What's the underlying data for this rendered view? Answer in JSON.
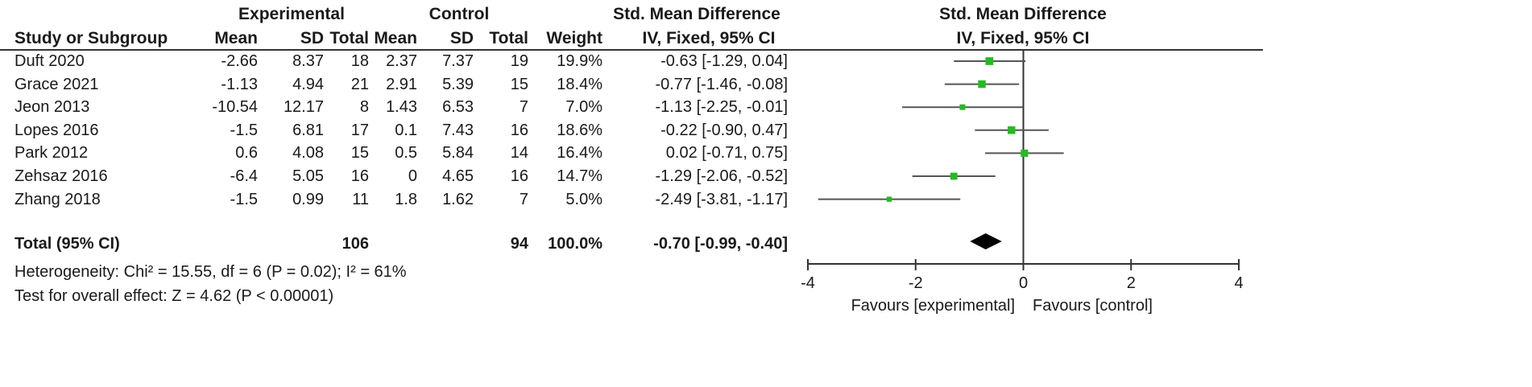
{
  "headers": {
    "experimental": "Experimental",
    "control": "Control",
    "smd_group_left": "Std. Mean Difference",
    "smd_group_right": "Std. Mean Difference",
    "study": "Study or Subgroup",
    "mean_e": "Mean",
    "sd_e": "SD",
    "total_e": "Total",
    "mean_c": "Mean",
    "sd_c": "SD",
    "total_c": "Total",
    "weight": "Weight",
    "ci_left": "IV, Fixed, 95% CI",
    "ci_right": "IV, Fixed, 95% CI"
  },
  "studies": [
    {
      "name": "Duft 2020",
      "mean_e": "-2.66",
      "sd_e": "8.37",
      "total_e": "18",
      "mean_c": "2.37",
      "sd_c": "7.37",
      "total_c": "19",
      "weight": "19.9%",
      "ci": "-0.63 [-1.29, 0.04]"
    },
    {
      "name": "Grace  2021",
      "mean_e": "-1.13",
      "sd_e": "4.94",
      "total_e": "21",
      "mean_c": "2.91",
      "sd_c": "5.39",
      "total_c": "15",
      "weight": "18.4%",
      "ci": "-0.77 [-1.46, -0.08]"
    },
    {
      "name": "Jeon 2013",
      "mean_e": "-10.54",
      "sd_e": "12.17",
      "total_e": "8",
      "mean_c": "1.43",
      "sd_c": "6.53",
      "total_c": "7",
      "weight": "7.0%",
      "ci": "-1.13 [-2.25, -0.01]"
    },
    {
      "name": "Lopes 2016",
      "mean_e": "-1.5",
      "sd_e": "6.81",
      "total_e": "17",
      "mean_c": "0.1",
      "sd_c": "7.43",
      "total_c": "16",
      "weight": "18.6%",
      "ci": "-0.22 [-0.90, 0.47]"
    },
    {
      "name": "Park 2012",
      "mean_e": "0.6",
      "sd_e": "4.08",
      "total_e": "15",
      "mean_c": "0.5",
      "sd_c": "5.84",
      "total_c": "14",
      "weight": "16.4%",
      "ci": "0.02 [-0.71, 0.75]"
    },
    {
      "name": "Zehsaz 2016",
      "mean_e": "-6.4",
      "sd_e": "5.05",
      "total_e": "16",
      "mean_c": "0",
      "sd_c": "4.65",
      "total_c": "16",
      "weight": "14.7%",
      "ci": "-1.29 [-2.06, -0.52]"
    },
    {
      "name": "Zhang 2018",
      "mean_e": "-1.5",
      "sd_e": "0.99",
      "total_e": "11",
      "mean_c": "1.8",
      "sd_c": "1.62",
      "total_c": "7",
      "weight": "5.0%",
      "ci": "-2.49 [-3.81, -1.17]"
    }
  ],
  "total": {
    "label": "Total (95% CI)",
    "total_e": "106",
    "total_c": "94",
    "weight": "100.0%",
    "ci": "-0.70 [-0.99, -0.40]"
  },
  "heterogeneity": "Heterogeneity: Chi² = 15.55, df = 6 (P = 0.02); I² = 61%",
  "overall_effect": "Test for overall effect: Z = 4.62 (P < 0.00001)",
  "favours_left": "Favours [experimental]",
  "favours_right": "Favours [control]",
  "colors": {
    "marker": "#22bb22",
    "line": "#555555",
    "diamond": "#000000",
    "axis": "#333333"
  },
  "chart_data": {
    "type": "forest",
    "xlim": [
      -4,
      4
    ],
    "ticks": [
      -4,
      -2,
      0,
      2,
      4
    ],
    "tick_labels": [
      "-4",
      "-2",
      "0",
      "2",
      "4"
    ],
    "points": [
      {
        "study": "Duft 2020",
        "est": -0.63,
        "lo": -1.29,
        "hi": 0.04,
        "weight": 19.9
      },
      {
        "study": "Grace  2021",
        "est": -0.77,
        "lo": -1.46,
        "hi": -0.08,
        "weight": 18.4
      },
      {
        "study": "Jeon 2013",
        "est": -1.13,
        "lo": -2.25,
        "hi": -0.01,
        "weight": 7.0
      },
      {
        "study": "Lopes 2016",
        "est": -0.22,
        "lo": -0.9,
        "hi": 0.47,
        "weight": 18.6
      },
      {
        "study": "Park 2012",
        "est": 0.02,
        "lo": -0.71,
        "hi": 0.75,
        "weight": 16.4
      },
      {
        "study": "Zehsaz 2016",
        "est": -1.29,
        "lo": -2.06,
        "hi": -0.52,
        "weight": 14.7
      },
      {
        "study": "Zhang 2018",
        "est": -2.49,
        "lo": -3.81,
        "hi": -1.17,
        "weight": 5.0
      }
    ],
    "summary": {
      "est": -0.7,
      "lo": -0.99,
      "hi": -0.4
    }
  }
}
